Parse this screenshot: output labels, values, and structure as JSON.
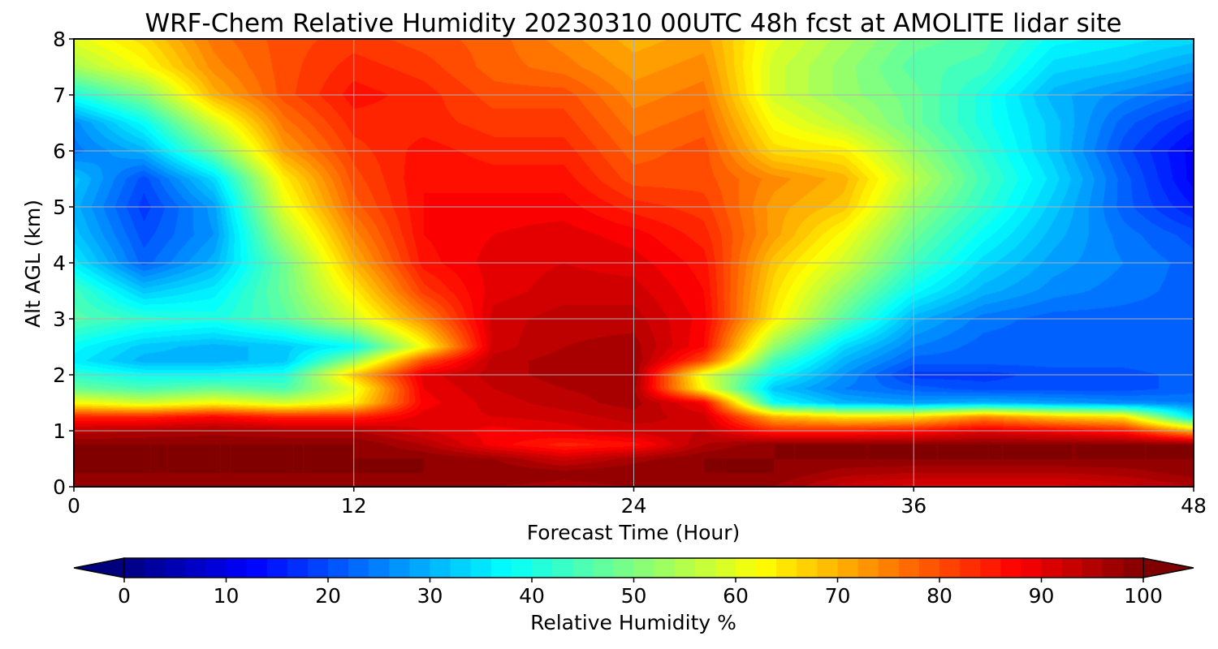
{
  "chart_data": {
    "type": "heatmap",
    "title": "WRF-Chem Relative Humidity 20230310 00UTC 48h fcst at AMOLITE lidar site",
    "xlabel": "Forecast Time (Hour)",
    "ylabel": "Alt AGL (km)",
    "xlim": [
      0,
      48
    ],
    "ylim": [
      0,
      8
    ],
    "x_ticks": [
      0,
      12,
      24,
      36,
      48
    ],
    "y_ticks": [
      0,
      1,
      2,
      3,
      4,
      5,
      6,
      7,
      8
    ],
    "grid": true,
    "x": [
      0,
      3,
      6,
      9,
      12,
      15,
      18,
      21,
      24,
      27,
      30,
      33,
      36,
      39,
      42,
      45,
      48
    ],
    "y": [
      0,
      0.25,
      0.5,
      0.75,
      1,
      1.25,
      1.5,
      1.75,
      2,
      2.25,
      2.5,
      3,
      3.5,
      4,
      4.5,
      5,
      5.5,
      6,
      6.5,
      7,
      7.5,
      8
    ],
    "z": [
      [
        97,
        97,
        97,
        97,
        97,
        97,
        97,
        96,
        97,
        97,
        97,
        92,
        90,
        90,
        90,
        92,
        95
      ],
      [
        99,
        99,
        99,
        99,
        99,
        99,
        99,
        98,
        99,
        99,
        99,
        96,
        95,
        95,
        95,
        96,
        98
      ],
      [
        99,
        99,
        99,
        99,
        99,
        99,
        97,
        92,
        96,
        99,
        99,
        99,
        99,
        99,
        99,
        99,
        99
      ],
      [
        99,
        99,
        99,
        99,
        99,
        95,
        88,
        84,
        86,
        95,
        99,
        99,
        99,
        99,
        99,
        99,
        99
      ],
      [
        94,
        95,
        96,
        95,
        95,
        91,
        88,
        90,
        92,
        93,
        84,
        84,
        86,
        90,
        88,
        85,
        70
      ],
      [
        84,
        84,
        87,
        84,
        84,
        90,
        91,
        92,
        94,
        92,
        70,
        65,
        66,
        74,
        68,
        65,
        35
      ],
      [
        62,
        58,
        62,
        58,
        64,
        88,
        92,
        94,
        96,
        88,
        38,
        30,
        28,
        30,
        28,
        26,
        25
      ],
      [
        48,
        45,
        48,
        45,
        60,
        89,
        93,
        95,
        96,
        62,
        32,
        25,
        22,
        20,
        20,
        20,
        22
      ],
      [
        42,
        38,
        38,
        40,
        68,
        90,
        94,
        96,
        97,
        60,
        38,
        27,
        18,
        18,
        20,
        20,
        22
      ],
      [
        36,
        30,
        30,
        32,
        52,
        80,
        94,
        96,
        97,
        80,
        44,
        30,
        22,
        22,
        22,
        22,
        23
      ],
      [
        38,
        32,
        30,
        32,
        38,
        62,
        92,
        95,
        96,
        87,
        52,
        34,
        25,
        22,
        22,
        21,
        22
      ],
      [
        46,
        42,
        40,
        46,
        58,
        74,
        92,
        94,
        94,
        88,
        64,
        46,
        30,
        24,
        22,
        22,
        22
      ],
      [
        44,
        32,
        36,
        48,
        64,
        82,
        90,
        92,
        92,
        87,
        66,
        52,
        38,
        30,
        26,
        24,
        22
      ],
      [
        36,
        22,
        30,
        48,
        70,
        86,
        90,
        91,
        90,
        86,
        68,
        58,
        44,
        34,
        28,
        25,
        22
      ],
      [
        32,
        20,
        27,
        54,
        74,
        87,
        89,
        90,
        88,
        84,
        72,
        62,
        48,
        38,
        30,
        24,
        20
      ],
      [
        30,
        18,
        28,
        60,
        78,
        87,
        88,
        88,
        84,
        82,
        72,
        68,
        52,
        42,
        32,
        22,
        15
      ],
      [
        32,
        20,
        34,
        64,
        80,
        87,
        86,
        86,
        80,
        80,
        74,
        70,
        56,
        44,
        34,
        22,
        12
      ],
      [
        24,
        30,
        48,
        72,
        82,
        86,
        84,
        84,
        78,
        80,
        66,
        64,
        52,
        42,
        32,
        20,
        12
      ],
      [
        26,
        38,
        58,
        76,
        84,
        84,
        82,
        82,
        76,
        78,
        62,
        56,
        48,
        40,
        32,
        22,
        16
      ],
      [
        40,
        50,
        70,
        80,
        86,
        84,
        80,
        80,
        74,
        76,
        58,
        52,
        48,
        40,
        30,
        26,
        22
      ],
      [
        54,
        62,
        74,
        80,
        84,
        82,
        78,
        76,
        72,
        74,
        58,
        52,
        46,
        44,
        34,
        32,
        28
      ],
      [
        60,
        66,
        76,
        80,
        82,
        80,
        78,
        74,
        70,
        72,
        60,
        54,
        48,
        46,
        38,
        36,
        34
      ]
    ],
    "colorbar": {
      "label": "Relative Humidity %",
      "ticks": [
        0,
        10,
        20,
        30,
        40,
        50,
        60,
        70,
        80,
        90,
        100
      ],
      "range": [
        0,
        100
      ],
      "extend": "both",
      "colormap": "jet"
    }
  }
}
